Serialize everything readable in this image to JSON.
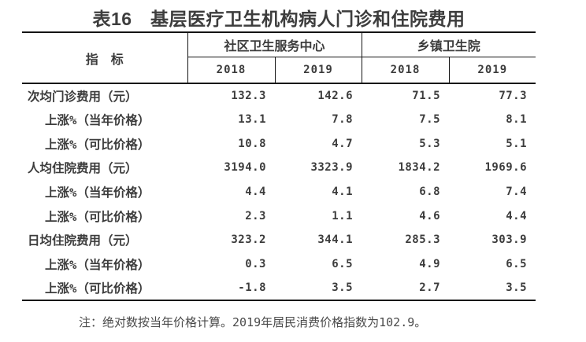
{
  "title": "表16　基层医疗卫生机构病人门诊和住院费用",
  "colors": {
    "text": "#3c3c3c",
    "border": "#141414",
    "background": "#ffffff"
  },
  "table": {
    "indicator_header": "指　标",
    "groups": [
      {
        "label": "社区卫生服务中心",
        "years": [
          "2018",
          "2019"
        ]
      },
      {
        "label": "乡镇卫生院",
        "years": [
          "2018",
          "2019"
        ]
      }
    ],
    "rows": [
      {
        "label": "次均门诊费用（元）",
        "indent": false,
        "values": [
          "132.3",
          "142.6",
          "71.5",
          "77.3"
        ]
      },
      {
        "label": "上涨%（当年价格）",
        "indent": true,
        "values": [
          "13.1",
          "7.8",
          "7.5",
          "8.1"
        ]
      },
      {
        "label": "上涨%（可比价格）",
        "indent": true,
        "values": [
          "10.8",
          "4.7",
          "5.3",
          "5.1"
        ]
      },
      {
        "label": "人均住院费用（元）",
        "indent": false,
        "values": [
          "3194.0",
          "3323.9",
          "1834.2",
          "1969.6"
        ]
      },
      {
        "label": "上涨%（当年价格）",
        "indent": true,
        "values": [
          "4.4",
          "4.1",
          "6.8",
          "7.4"
        ]
      },
      {
        "label": "上涨%（可比价格）",
        "indent": true,
        "values": [
          "2.3",
          "1.1",
          "4.6",
          "4.4"
        ]
      },
      {
        "label": "日均住院费用（元）",
        "indent": false,
        "values": [
          "323.2",
          "344.1",
          "285.3",
          "303.9"
        ]
      },
      {
        "label": "上涨%（当年价格）",
        "indent": true,
        "values": [
          "0.3",
          "6.5",
          "4.9",
          "6.5"
        ]
      },
      {
        "label": "上涨%（可比价格）",
        "indent": true,
        "values": [
          "-1.8",
          "3.5",
          "2.7",
          "3.5"
        ]
      }
    ]
  },
  "note": "注：绝对数按当年价格计算。2019年居民消费价格指数为102.9。"
}
